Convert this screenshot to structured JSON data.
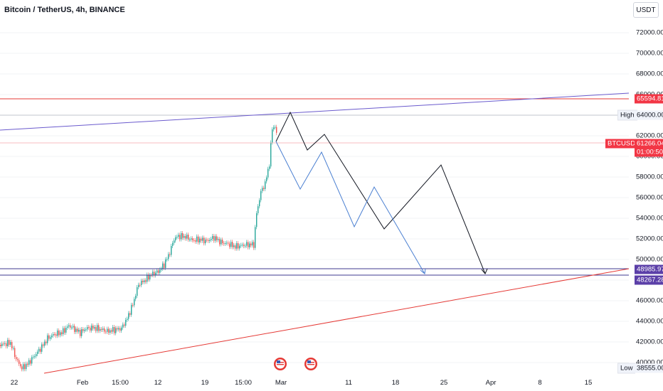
{
  "header": {
    "symbol_title": "Bitcoin / TetherUS, 4h, BINANCE",
    "currency_button": "USDT"
  },
  "y_axis": {
    "ticks": [
      "72000.00",
      "70000.00",
      "68000.00",
      "66000.00",
      "64000.00",
      "62000.00",
      "60000.00",
      "58000.00",
      "56000.00",
      "54000.00",
      "52000.00",
      "50000.00",
      "48000.00",
      "46000.00",
      "44000.00",
      "42000.00",
      "40000.00"
    ]
  },
  "x_axis": {
    "ticks": [
      "22",
      "Feb",
      "15:00",
      "12",
      "19",
      "15:00",
      "Mar",
      "11",
      "18",
      "25",
      "Apr",
      "8",
      "15"
    ]
  },
  "price_tags": {
    "resistance": "65594.81",
    "high_label": "High",
    "high_value": "64000.00",
    "symbol_label": "BTCUSDT",
    "last_price": "61266.04",
    "countdown": "01:00:50",
    "support_top": "48985.97",
    "support_bottom": "48267.28",
    "low_label": "Low",
    "low_value": "38555.00"
  },
  "colors": {
    "up": "#26a69a",
    "down": "#ef5350",
    "trend_upper": "#6a5acd",
    "trend_lower": "#e53935",
    "resistance": "#e53935",
    "support": "#3f3a8f",
    "projection_black": "#131722",
    "projection_blue": "#4a7fd1"
  },
  "icons": [
    "us-flag-event-icon",
    "us-flag-event-icon"
  ]
}
